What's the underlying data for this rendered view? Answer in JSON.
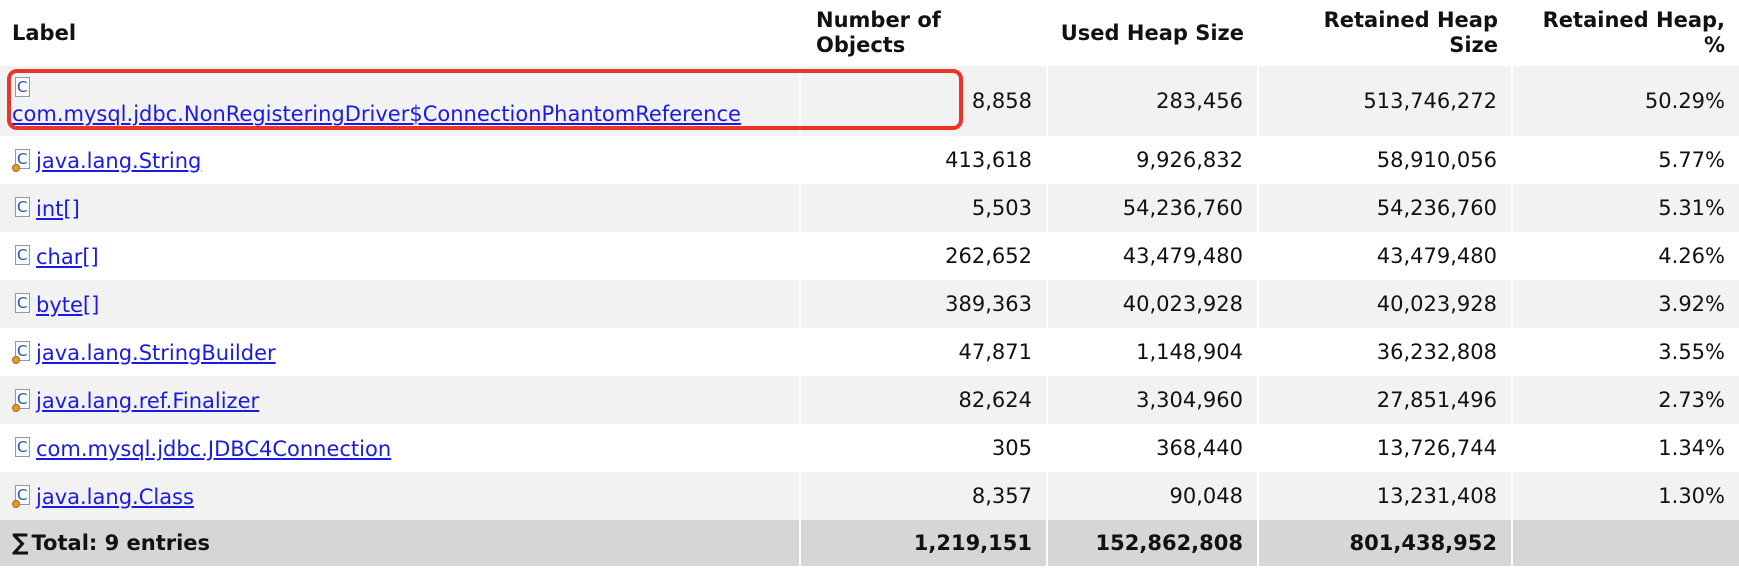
{
  "headers": {
    "label": "Label",
    "num_objects_line1": "Number of",
    "num_objects_line2": "Objects",
    "used_heap": "Used Heap Size",
    "retained_heap": "Retained Heap Size",
    "retained_pct": "Retained Heap, %"
  },
  "icon_letter": "C",
  "rows": [
    {
      "label": "com.mysql.jdbc.NonRegisteringDriver$ConnectionPhantomReference",
      "objects": "8,858",
      "used": "283,456",
      "retained": "513,746,272",
      "pct": "50.29%"
    },
    {
      "label": "java.lang.String",
      "objects": "413,618",
      "used": "9,926,832",
      "retained": "58,910,056",
      "pct": "5.77%"
    },
    {
      "label": "int[]",
      "objects": "5,503",
      "used": "54,236,760",
      "retained": "54,236,760",
      "pct": "5.31%"
    },
    {
      "label": "char[]",
      "objects": "262,652",
      "used": "43,479,480",
      "retained": "43,479,480",
      "pct": "4.26%"
    },
    {
      "label": "byte[]",
      "objects": "389,363",
      "used": "40,023,928",
      "retained": "40,023,928",
      "pct": "3.92%"
    },
    {
      "label": "java.lang.StringBuilder",
      "objects": "47,871",
      "used": "1,148,904",
      "retained": "36,232,808",
      "pct": "3.55%"
    },
    {
      "label": "java.lang.ref.Finalizer",
      "objects": "82,624",
      "used": "3,304,960",
      "retained": "27,851,496",
      "pct": "2.73%"
    },
    {
      "label": "com.mysql.jdbc.JDBC4Connection",
      "objects": "305",
      "used": "368,440",
      "retained": "13,726,744",
      "pct": "1.34%"
    },
    {
      "label": "java.lang.Class",
      "objects": "8,357",
      "used": "90,048",
      "retained": "13,231,408",
      "pct": "1.30%"
    }
  ],
  "total": {
    "symbol": "∑",
    "label": "Total: 9 entries",
    "objects": "1,219,151",
    "used": "152,862,808",
    "retained": "801,438,952",
    "pct": ""
  },
  "colors": {
    "link": "#1a1ae6",
    "highlight": "#e8352a",
    "row_alt": "#f2f2f2",
    "total_bg": "#d6d6d6"
  }
}
